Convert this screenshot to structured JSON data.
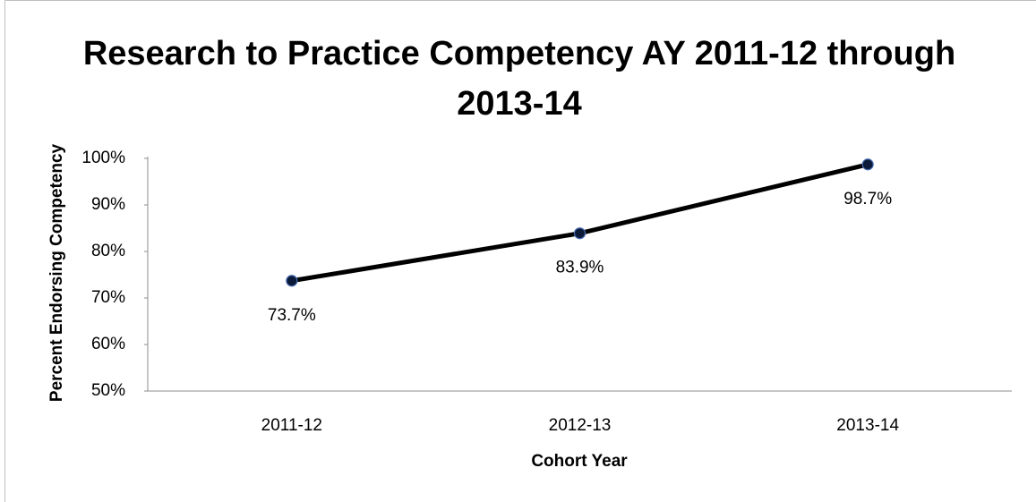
{
  "chart_data": {
    "type": "line",
    "title": "Research to Practice Competency AY 2011-12 through 2013-14",
    "x_label": "Cohort Year",
    "y_label": "Percent Endorsing Competency",
    "categories": [
      "2011-12",
      "2012-13",
      "2013-14"
    ],
    "values": [
      73.7,
      83.9,
      98.7
    ],
    "value_labels": [
      "73.7%",
      "83.9%",
      "98.7%"
    ],
    "color": "#000000",
    "marker_color": "#0d1b3a",
    "ylim": [
      50,
      100
    ],
    "yticks": [
      {
        "value": 50,
        "label": "50%"
      },
      {
        "value": 60,
        "label": "60%"
      },
      {
        "value": 70,
        "label": "70%"
      },
      {
        "value": 80,
        "label": "80%"
      },
      {
        "value": 90,
        "label": "90%"
      },
      {
        "value": 100,
        "label": "100%"
      }
    ],
    "grid": false
  }
}
